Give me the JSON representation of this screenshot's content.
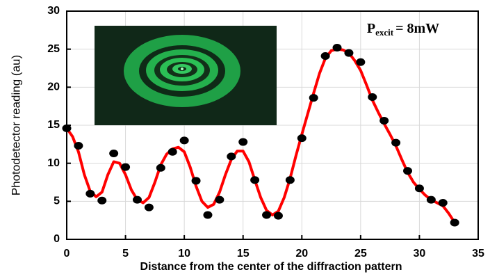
{
  "chart_data": {
    "type": "scatter",
    "xlabel": "Distance from the center of the diffraction pattern",
    "ylabel": "Photodetector reading (au)",
    "annotation": {
      "main": "P",
      "sub": "excit",
      "rest": "= 8mW"
    },
    "xlim": [
      0,
      35
    ],
    "xticks": [
      0,
      5,
      10,
      15,
      20,
      25,
      30,
      35
    ],
    "ylim": [
      0,
      30
    ],
    "yticks": [
      0,
      5,
      10,
      15,
      20,
      25,
      30
    ],
    "grid": true,
    "series": [
      {
        "mode": "markers",
        "color": "#000000",
        "x": [
          0,
          1,
          2,
          3,
          4,
          5,
          6,
          7,
          8,
          9,
          10,
          11,
          12,
          13,
          14,
          15,
          16,
          17,
          18,
          19,
          20,
          21,
          22,
          23,
          24,
          25,
          26,
          27,
          28,
          29,
          30,
          31,
          32,
          33
        ],
        "values": [
          14.6,
          12.3,
          6.0,
          5.1,
          11.3,
          9.5,
          5.2,
          4.2,
          9.4,
          11.5,
          13.0,
          7.7,
          3.2,
          5.2,
          10.9,
          12.8,
          7.8,
          3.2,
          3.1,
          7.8,
          13.3,
          18.6,
          24.1,
          25.2,
          24.5,
          23.3,
          18.7,
          15.6,
          12.7,
          9.0,
          6.7,
          5.2,
          4.8,
          2.2
        ]
      },
      {
        "mode": "line",
        "color": "#ff0000",
        "x": [
          0,
          0.5,
          1,
          1.5,
          2,
          2.5,
          3,
          3.5,
          4,
          4.5,
          5,
          5.5,
          6,
          6.5,
          7,
          7.5,
          8,
          8.5,
          9,
          9.5,
          10,
          10.5,
          11,
          11.5,
          12,
          12.5,
          13,
          13.5,
          14,
          14.5,
          15,
          15.5,
          16,
          16.5,
          17,
          17.5,
          18,
          18.5,
          19,
          19.5,
          20,
          20.5,
          21,
          21.5,
          22,
          22.5,
          23,
          23.5,
          24,
          24.5,
          25,
          25.5,
          26,
          26.5,
          27,
          27.5,
          28,
          28.5,
          29,
          29.5,
          30,
          30.5,
          31,
          31.5,
          32,
          32.5,
          33
        ],
        "values": [
          14.6,
          13.5,
          11.5,
          8.5,
          6.3,
          5.6,
          6.2,
          8.5,
          10.2,
          10.0,
          8.5,
          6.5,
          5.2,
          4.8,
          5.5,
          7.5,
          9.8,
          11.2,
          11.9,
          12.1,
          11.5,
          9.5,
          7.0,
          5.0,
          4.2,
          4.6,
          6.2,
          8.5,
          10.5,
          11.6,
          11.6,
          10.2,
          7.8,
          5.5,
          3.8,
          3.2,
          3.7,
          5.5,
          8.0,
          11.0,
          13.8,
          16.5,
          19.2,
          21.8,
          23.8,
          24.8,
          25.0,
          24.9,
          24.5,
          23.5,
          22.2,
          20.3,
          18.3,
          16.7,
          15.2,
          13.8,
          12.3,
          10.5,
          8.8,
          7.5,
          6.6,
          5.8,
          5.2,
          4.8,
          4.4,
          3.4,
          2.2
        ]
      }
    ]
  }
}
